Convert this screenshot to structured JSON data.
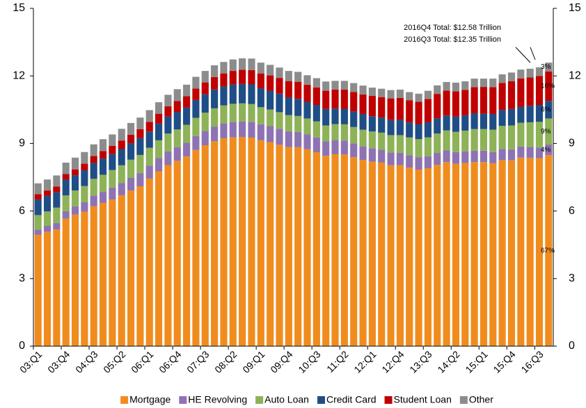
{
  "chart_data": {
    "type": "stacked_bar",
    "categories": [
      "03:Q1",
      null,
      null,
      "03:Q4",
      null,
      null,
      "04:Q3",
      null,
      null,
      "05:Q2",
      null,
      null,
      "06:Q1",
      null,
      null,
      "06:Q4",
      null,
      null,
      "07:Q3",
      null,
      null,
      "08:Q2",
      null,
      null,
      "09:Q1",
      null,
      null,
      "09:Q4",
      null,
      null,
      "10:Q3",
      null,
      null,
      "11:Q2",
      null,
      null,
      "12:Q1",
      null,
      null,
      "12:Q4",
      null,
      null,
      "13:Q3",
      null,
      null,
      "14:Q2",
      null,
      null,
      "15:Q1",
      null,
      null,
      "15:Q4",
      null,
      null,
      "16:Q3",
      null
    ],
    "series": [
      {
        "name": "Mortgage",
        "color": "#F08C1E",
        "share_label": "67%",
        "values": [
          4.94,
          5.08,
          5.18,
          5.66,
          5.84,
          5.97,
          6.21,
          6.36,
          6.51,
          6.7,
          6.91,
          7.1,
          7.44,
          7.76,
          8.04,
          8.23,
          8.42,
          8.71,
          8.92,
          9.1,
          9.23,
          9.27,
          9.29,
          9.26,
          9.14,
          9.06,
          8.94,
          8.84,
          8.83,
          8.74,
          8.61,
          8.45,
          8.52,
          8.51,
          8.39,
          8.27,
          8.19,
          8.15,
          8.03,
          8.03,
          7.93,
          7.84,
          7.9,
          8.05,
          8.17,
          8.1,
          8.13,
          8.17,
          8.17,
          8.12,
          8.26,
          8.25,
          8.37,
          8.36,
          8.35,
          8.48
        ]
      },
      {
        "name": "HE Revolving",
        "color": "#8E73B3",
        "share_label": "4%",
        "values": [
          0.24,
          0.26,
          0.29,
          0.33,
          0.37,
          0.42,
          0.47,
          0.49,
          0.53,
          0.54,
          0.56,
          0.57,
          0.58,
          0.59,
          0.6,
          0.6,
          0.61,
          0.62,
          0.63,
          0.65,
          0.66,
          0.68,
          0.69,
          0.7,
          0.71,
          0.71,
          0.71,
          0.7,
          0.68,
          0.67,
          0.66,
          0.64,
          0.63,
          0.62,
          0.61,
          0.61,
          0.6,
          0.58,
          0.57,
          0.56,
          0.55,
          0.54,
          0.53,
          0.53,
          0.53,
          0.52,
          0.51,
          0.51,
          0.51,
          0.5,
          0.5,
          0.49,
          0.49,
          0.48,
          0.47,
          0.47
        ]
      },
      {
        "name": "Auto Loan",
        "color": "#8DB257",
        "share_label": "9%",
        "values": [
          0.64,
          0.64,
          0.68,
          0.7,
          0.7,
          0.72,
          0.75,
          0.76,
          0.78,
          0.79,
          0.81,
          0.82,
          0.79,
          0.79,
          0.8,
          0.79,
          0.8,
          0.81,
          0.82,
          0.81,
          0.8,
          0.81,
          0.8,
          0.79,
          0.76,
          0.74,
          0.74,
          0.72,
          0.71,
          0.7,
          0.71,
          0.71,
          0.71,
          0.72,
          0.73,
          0.73,
          0.74,
          0.75,
          0.77,
          0.78,
          0.79,
          0.81,
          0.84,
          0.86,
          0.88,
          0.9,
          0.93,
          0.96,
          0.96,
          0.99,
          1.02,
          1.06,
          1.06,
          1.1,
          1.14,
          1.16
        ]
      },
      {
        "name": "Credit Card",
        "color": "#1F4E86",
        "share_label": "6%",
        "values": [
          0.69,
          0.69,
          0.69,
          0.7,
          0.68,
          0.7,
          0.7,
          0.72,
          0.71,
          0.72,
          0.73,
          0.75,
          0.72,
          0.74,
          0.75,
          0.78,
          0.76,
          0.79,
          0.81,
          0.84,
          0.84,
          0.85,
          0.86,
          0.87,
          0.84,
          0.83,
          0.82,
          0.79,
          0.76,
          0.74,
          0.73,
          0.73,
          0.69,
          0.69,
          0.69,
          0.7,
          0.68,
          0.67,
          0.67,
          0.68,
          0.66,
          0.67,
          0.67,
          0.68,
          0.66,
          0.67,
          0.68,
          0.7,
          0.68,
          0.7,
          0.71,
          0.73,
          0.71,
          0.73,
          0.75,
          0.78
        ]
      },
      {
        "name": "Student Loan",
        "color": "#C00000",
        "share_label": "10%",
        "values": [
          0.24,
          0.24,
          0.25,
          0.25,
          0.26,
          0.29,
          0.31,
          0.33,
          0.36,
          0.38,
          0.38,
          0.39,
          0.43,
          0.44,
          0.46,
          0.48,
          0.51,
          0.51,
          0.53,
          0.55,
          0.58,
          0.61,
          0.63,
          0.64,
          0.66,
          0.68,
          0.7,
          0.72,
          0.76,
          0.76,
          0.78,
          0.81,
          0.84,
          0.85,
          0.87,
          0.87,
          0.9,
          0.91,
          0.96,
          0.97,
          0.99,
          0.99,
          1.03,
          1.08,
          1.11,
          1.12,
          1.13,
          1.16,
          1.19,
          1.19,
          1.2,
          1.23,
          1.26,
          1.26,
          1.28,
          1.31
        ]
      },
      {
        "name": "Other",
        "color": "#8C8C8C",
        "share_label": "3%",
        "values": [
          0.48,
          0.49,
          0.49,
          0.51,
          0.52,
          0.52,
          0.52,
          0.53,
          0.51,
          0.52,
          0.52,
          0.52,
          0.52,
          0.51,
          0.51,
          0.53,
          0.51,
          0.52,
          0.51,
          0.52,
          0.51,
          0.51,
          0.51,
          0.51,
          0.48,
          0.47,
          0.46,
          0.45,
          0.44,
          0.42,
          0.41,
          0.41,
          0.39,
          0.39,
          0.39,
          0.39,
          0.37,
          0.37,
          0.37,
          0.37,
          0.36,
          0.36,
          0.37,
          0.38,
          0.38,
          0.39,
          0.38,
          0.38,
          0.37,
          0.38,
          0.38,
          0.39,
          0.39,
          0.39,
          0.39,
          0.39
        ]
      }
    ],
    "annotations": [
      "2016Q4 Total: $12.58 Trillion",
      "2016Q3 Total: $12.35 Trillion"
    ],
    "ylim": [
      0,
      15
    ],
    "yticks": [
      0,
      3,
      6,
      9,
      12,
      15
    ],
    "y2lim": [
      0,
      15
    ],
    "y2ticks": [
      0,
      3,
      6,
      9,
      12,
      15
    ],
    "legend": "bottom"
  }
}
